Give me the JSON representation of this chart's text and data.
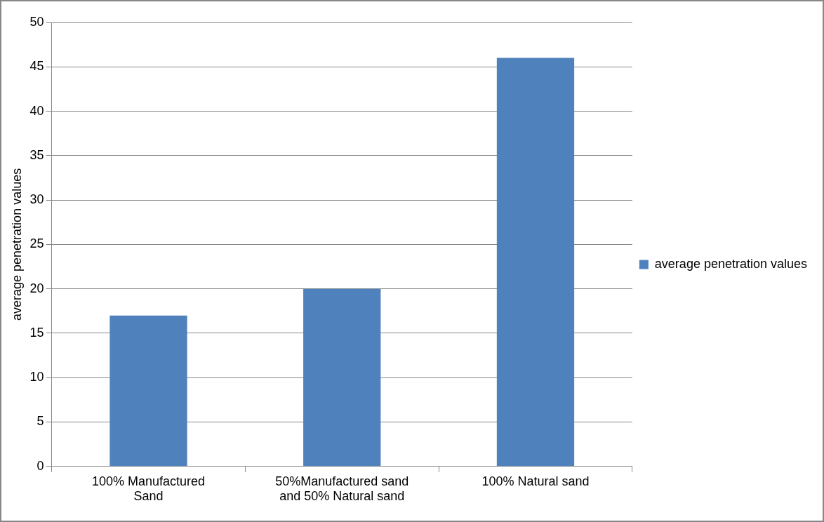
{
  "chart_data": {
    "type": "bar",
    "categories": [
      "100% Manufactured Sand",
      "50%Manufactured sand and 50% Natural sand",
      "100% Natural sand"
    ],
    "series": [
      {
        "name": "average penetration values",
        "color": "#4f81bd",
        "values": [
          17,
          20,
          46
        ]
      }
    ],
    "ylabel": "average penetration values",
    "ylim": [
      0,
      50
    ],
    "yticks": [
      0,
      5,
      10,
      15,
      20,
      25,
      30,
      35,
      40,
      45,
      50
    ],
    "grid": "y",
    "legend": "right"
  }
}
